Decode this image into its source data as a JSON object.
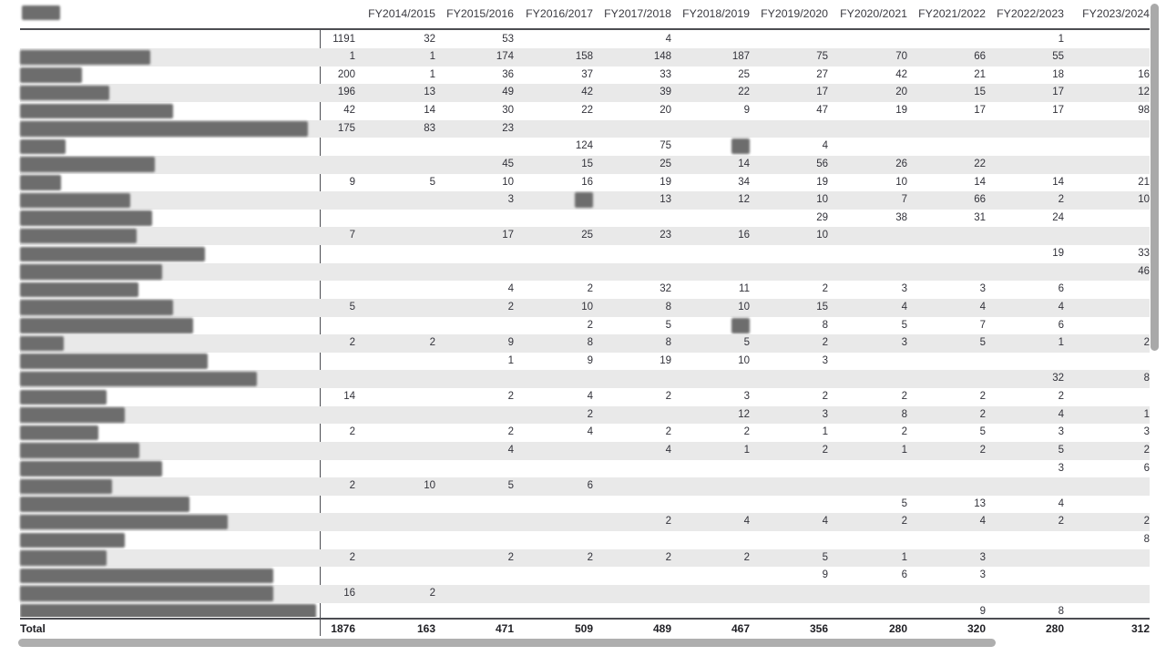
{
  "table": {
    "corner_header": {
      "redacted": true,
      "redaction_width": 42
    },
    "columns": [
      "",
      "FY2014/2015",
      "FY2015/2016",
      "FY2016/2017",
      "FY2017/2018",
      "FY2018/2019",
      "FY2019/2020",
      "FY2020/2021",
      "FY2021/2022",
      "FY2022/2023",
      "FY2023/2024"
    ],
    "rows": [
      {
        "label_redacted_w": 0,
        "cells": [
          "1191",
          "32",
          "53",
          "",
          "4",
          "",
          "",
          "",
          "",
          "1",
          ""
        ]
      },
      {
        "label_redacted_w": 143,
        "cells": [
          "1",
          "1",
          "174",
          "158",
          "148",
          "187",
          "75",
          "70",
          "66",
          "55",
          ""
        ]
      },
      {
        "label_redacted_w": 68,
        "cells": [
          "200",
          "1",
          "36",
          "37",
          "33",
          "25",
          "27",
          "42",
          "21",
          "18",
          "16"
        ]
      },
      {
        "label_redacted_w": 98,
        "cells": [
          "196",
          "13",
          "49",
          "42",
          "39",
          "22",
          "17",
          "20",
          "15",
          "17",
          "12"
        ]
      },
      {
        "label_redacted_w": 168,
        "cells": [
          "42",
          "14",
          "30",
          "22",
          "20",
          "9",
          "47",
          "19",
          "17",
          "17",
          "98"
        ]
      },
      {
        "label_redacted_w": 316,
        "cells": [
          "175",
          "83",
          "23",
          "",
          "",
          "",
          "",
          "",
          "",
          "",
          ""
        ]
      },
      {
        "label_redacted_w": 50,
        "cells": [
          "",
          "",
          "",
          "124",
          "75",
          "#R#",
          "4",
          "",
          "",
          "",
          ""
        ]
      },
      {
        "label_redacted_w": 148,
        "cells": [
          "",
          "",
          "45",
          "15",
          "25",
          "14",
          "56",
          "26",
          "22",
          "",
          ""
        ]
      },
      {
        "label_redacted_w": 45,
        "cells": [
          "9",
          "5",
          "10",
          "16",
          "19",
          "34",
          "19",
          "10",
          "14",
          "14",
          "21"
        ]
      },
      {
        "label_redacted_w": 121,
        "cells": [
          "",
          "",
          "3",
          "#R#",
          "13",
          "12",
          "10",
          "7",
          "66",
          "2",
          "10"
        ]
      },
      {
        "label_redacted_w": 145,
        "cells": [
          "",
          "",
          "",
          "",
          "",
          "",
          "29",
          "38",
          "31",
          "24",
          ""
        ]
      },
      {
        "label_redacted_w": 128,
        "cells": [
          "7",
          "",
          "17",
          "25",
          "23",
          "16",
          "10",
          "",
          "",
          "",
          ""
        ]
      },
      {
        "label_redacted_w": 203,
        "cells": [
          "",
          "",
          "",
          "",
          "",
          "",
          "",
          "",
          "",
          "19",
          "33"
        ]
      },
      {
        "label_redacted_w": 156,
        "cells": [
          "",
          "",
          "",
          "",
          "",
          "",
          "",
          "",
          "",
          "",
          "46"
        ]
      },
      {
        "label_redacted_w": 130,
        "cells": [
          "",
          "",
          "4",
          "2",
          "32",
          "11",
          "2",
          "3",
          "3",
          "6",
          ""
        ]
      },
      {
        "label_redacted_w": 168,
        "cells": [
          "5",
          "",
          "2",
          "10",
          "8",
          "10",
          "15",
          "4",
          "4",
          "4",
          ""
        ]
      },
      {
        "label_redacted_w": 190,
        "cells": [
          "",
          "",
          "",
          "2",
          "5",
          "#R#",
          "8",
          "5",
          "7",
          "6",
          ""
        ]
      },
      {
        "label_redacted_w": 48,
        "cells": [
          "2",
          "2",
          "9",
          "8",
          "8",
          "5",
          "2",
          "3",
          "5",
          "1",
          "2"
        ]
      },
      {
        "label_redacted_w": 206,
        "cells": [
          "",
          "",
          "1",
          "9",
          "19",
          "10",
          "3",
          "",
          "",
          "",
          ""
        ]
      },
      {
        "label_redacted_w": 260,
        "cells": [
          "",
          "",
          "",
          "",
          "",
          "",
          "",
          "",
          "",
          "32",
          "8"
        ]
      },
      {
        "label_redacted_w": 95,
        "cells": [
          "14",
          "",
          "2",
          "4",
          "2",
          "3",
          "2",
          "2",
          "2",
          "2",
          ""
        ]
      },
      {
        "label_redacted_w": 115,
        "cells": [
          "",
          "",
          "",
          "2",
          "",
          "12",
          "3",
          "8",
          "2",
          "4",
          "1"
        ]
      },
      {
        "label_redacted_w": 86,
        "cells": [
          "2",
          "",
          "2",
          "4",
          "2",
          "2",
          "1",
          "2",
          "5",
          "3",
          "3"
        ]
      },
      {
        "label_redacted_w": 131,
        "cells": [
          "",
          "",
          "4",
          "",
          "4",
          "1",
          "2",
          "1",
          "2",
          "5",
          "2"
        ]
      },
      {
        "label_redacted_w": 156,
        "cells": [
          "",
          "",
          "",
          "",
          "",
          "",
          "",
          "",
          "",
          "3",
          "6"
        ]
      },
      {
        "label_redacted_w": 101,
        "cells": [
          "2",
          "10",
          "5",
          "6",
          "",
          "",
          "",
          "",
          "",
          "",
          ""
        ]
      },
      {
        "label_redacted_w": 186,
        "cells": [
          "",
          "",
          "",
          "",
          "",
          "",
          "",
          "5",
          "13",
          "4",
          ""
        ]
      },
      {
        "label_redacted_w": 228,
        "cells": [
          "",
          "",
          "",
          "",
          "2",
          "4",
          "4",
          "2",
          "4",
          "2",
          "2"
        ]
      },
      {
        "label_redacted_w": 115,
        "cells": [
          "",
          "",
          "",
          "",
          "",
          "",
          "",
          "",
          "",
          "",
          "8"
        ]
      },
      {
        "label_redacted_w": 95,
        "cells": [
          "2",
          "",
          "2",
          "2",
          "2",
          "2",
          "5",
          "1",
          "3",
          "",
          ""
        ]
      },
      {
        "label_redacted_w": 278,
        "cells": [
          "",
          "",
          "",
          "",
          "",
          "",
          "9",
          "6",
          "3",
          "",
          ""
        ]
      },
      {
        "label_redacted_w": 278,
        "cells": [
          "16",
          "2",
          "",
          "",
          "",
          "",
          "",
          "",
          "",
          "",
          ""
        ]
      },
      {
        "label_redacted_w": 325,
        "partial": true,
        "cells": [
          "",
          "",
          "",
          "",
          "",
          "",
          "",
          "",
          "9",
          "8",
          ""
        ]
      }
    ],
    "total": {
      "label": "Total",
      "cells": [
        "1876",
        "163",
        "471",
        "509",
        "489",
        "467",
        "356",
        "280",
        "320",
        "280",
        "312"
      ]
    }
  },
  "scrollbars": {
    "vertical": true,
    "horizontal": true,
    "color": "#a9a9a9"
  },
  "colors": {
    "stripe": "#e9e9e9",
    "gridline": "#4c4d52",
    "text": "#32323a",
    "redaction": "#6d6d6d"
  }
}
